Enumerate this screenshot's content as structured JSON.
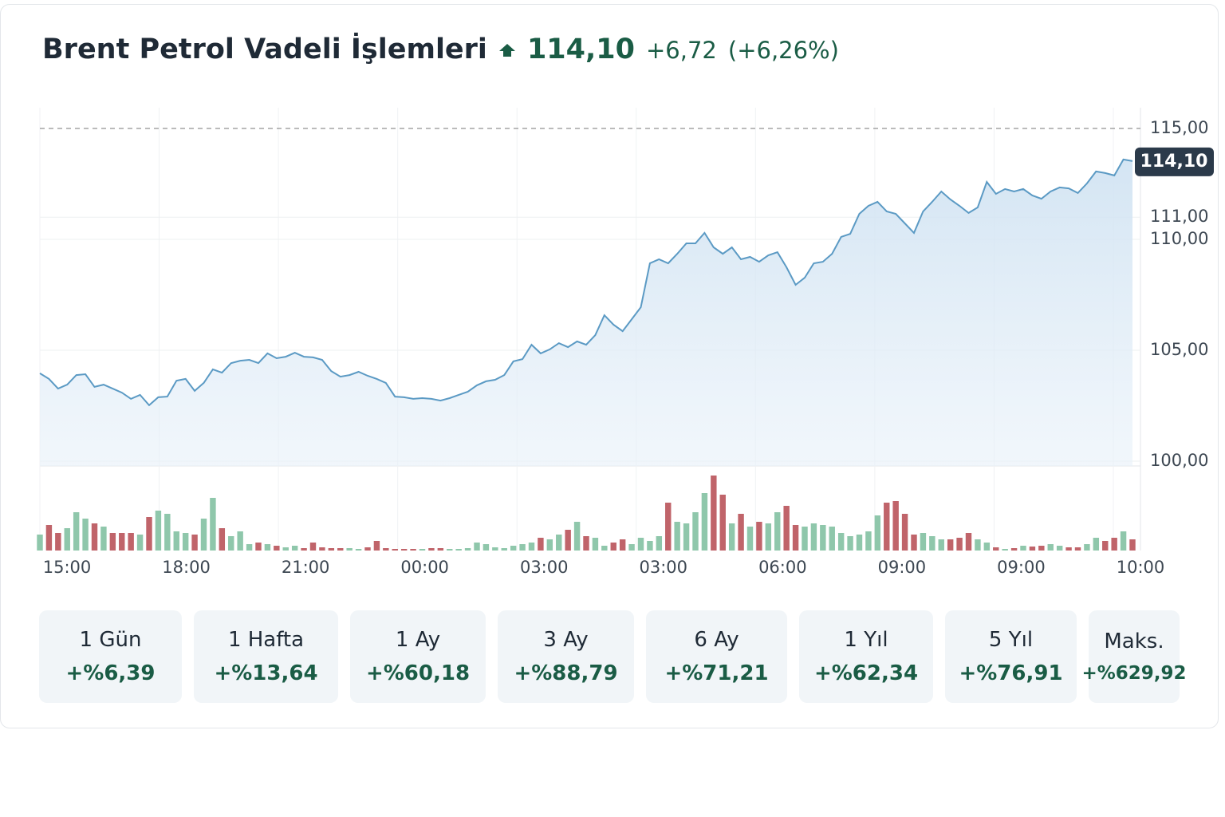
{
  "header": {
    "title": "Brent Petrol Vadeli İşlemleri",
    "price": "114,10",
    "change": "+6,72",
    "change_pct": "(+6,26%)"
  },
  "chart_data": {
    "type": "line",
    "color": "#5b9ac4",
    "up_color": "#8fc7ab",
    "down_color": "#c0646a",
    "ylim": [
      100,
      115
    ],
    "yticks": [
      {
        "value": 100,
        "label": "100,00"
      },
      {
        "value": 105,
        "label": "105,00"
      },
      {
        "value": 110,
        "label": "110,00"
      },
      {
        "value": 111,
        "label": "111,00"
      },
      {
        "value": 115,
        "label": "115,00"
      }
    ],
    "grid": true,
    "x_labels": [
      "15:00",
      "18:00",
      "21:00",
      "00:00",
      "03:00",
      "03:00",
      "06:00",
      "09:00",
      "09:00",
      "10:00"
    ],
    "values": [
      103.96,
      103.71,
      103.27,
      103.45,
      103.88,
      103.92,
      103.35,
      103.45,
      103.27,
      103.09,
      102.81,
      102.99,
      102.52,
      102.88,
      102.91,
      103.63,
      103.71,
      103.17,
      103.53,
      104.14,
      103.99,
      104.42,
      104.53,
      104.57,
      104.42,
      104.86,
      104.64,
      104.71,
      104.89,
      104.71,
      104.68,
      104.57,
      104.06,
      103.81,
      103.88,
      104.03,
      103.85,
      103.71,
      103.53,
      102.91,
      102.88,
      102.81,
      102.84,
      102.81,
      102.73,
      102.84,
      102.99,
      103.13,
      103.42,
      103.6,
      103.67,
      103.88,
      104.5,
      104.6,
      105.25,
      104.86,
      105.04,
      105.32,
      105.14,
      105.4,
      105.25,
      105.68,
      106.58,
      106.15,
      105.86,
      106.4,
      106.94,
      108.92,
      109.1,
      108.92,
      109.35,
      109.82,
      109.82,
      110.29,
      109.64,
      109.35,
      109.64,
      109.1,
      109.21,
      108.99,
      109.28,
      109.42,
      108.74,
      107.95,
      108.27,
      108.92,
      108.99,
      109.35,
      110.11,
      110.25,
      111.15,
      111.51,
      111.69,
      111.26,
      111.15,
      110.72,
      110.29,
      111.26,
      111.69,
      112.16,
      111.8,
      111.51,
      111.19,
      111.44,
      112.59,
      112.05,
      112.27,
      112.16,
      112.27,
      111.98,
      111.83,
      112.16,
      112.34,
      112.3,
      112.09,
      112.52,
      113.06,
      112.99,
      112.88,
      113.6,
      113.53
    ],
    "volume": [
      20,
      32,
      22,
      28,
      48,
      40,
      34,
      30,
      22,
      22,
      22,
      20,
      42,
      50,
      46,
      24,
      22,
      20,
      40,
      66,
      28,
      18,
      24,
      8,
      10,
      8,
      6,
      4,
      6,
      3,
      10,
      4,
      3,
      3,
      3,
      2,
      4,
      12,
      3,
      2,
      2,
      2,
      2,
      3,
      3,
      2,
      2,
      3,
      10,
      8,
      4,
      3,
      6,
      8,
      10,
      16,
      14,
      20,
      26,
      36,
      18,
      16,
      6,
      10,
      14,
      8,
      16,
      12,
      18,
      60,
      36,
      34,
      48,
      72,
      94,
      70,
      34,
      46,
      30,
      36,
      34,
      48,
      56,
      32,
      30,
      34,
      32,
      30,
      22,
      18,
      20,
      24,
      44,
      60,
      62,
      46,
      20,
      22,
      18,
      14,
      14,
      16,
      22,
      14,
      10,
      4,
      2,
      3,
      6,
      5,
      6,
      8,
      6,
      4,
      4,
      8,
      16,
      12,
      16,
      24,
      14
    ]
  },
  "periods": [
    {
      "label": "1 Gün",
      "change": "+%6,39"
    },
    {
      "label": "1 Hafta",
      "change": "+%13,64"
    },
    {
      "label": "1 Ay",
      "change": "+%60,18"
    },
    {
      "label": "3 Ay",
      "change": "+%88,79"
    },
    {
      "label": "6 Ay",
      "change": "+%71,21"
    },
    {
      "label": "1 Yıl",
      "change": "+%62,34"
    },
    {
      "label": "5 Yıl",
      "change": "+%76,91"
    },
    {
      "label": "Maks.",
      "change": "+%629,92"
    }
  ]
}
